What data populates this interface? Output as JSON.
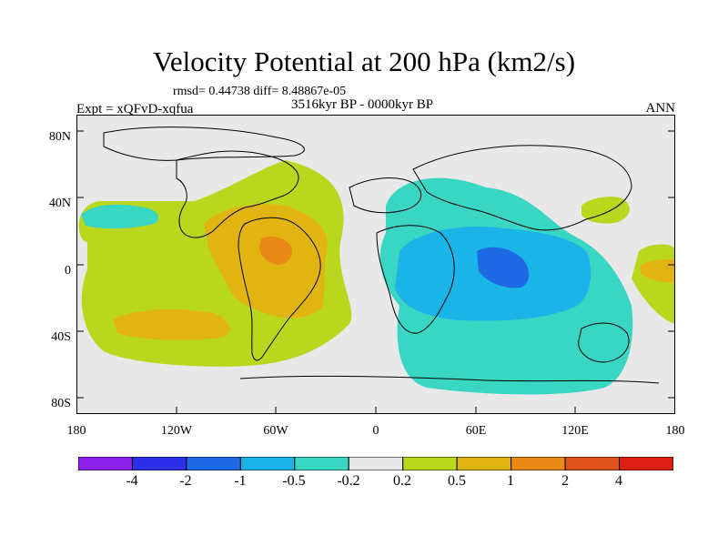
{
  "header": {
    "title": "Velocity Potential at 200 hPa (km2/s)",
    "stats": "rmsd= 0.44738 diff= 8.48867e-05",
    "experiment": "Expt = xQFvD-xqfua",
    "period": "3516kyr BP - 0000kyr BP",
    "season": "ANN"
  },
  "axes": {
    "lat_labels": [
      "80N",
      "40N",
      "0",
      "40S",
      "80S"
    ],
    "lon_labels": [
      "180",
      "120W",
      "60W",
      "0",
      "60E",
      "120E",
      "180"
    ]
  },
  "colorbar": {
    "labels": [
      "-4",
      "-2",
      "-1",
      "-0.5",
      "-0.2",
      "0.2",
      "0.5",
      "1",
      "2",
      "4"
    ],
    "colors": [
      "#8b1ee8",
      "#2d2ee8",
      "#1e6ae6",
      "#1ab4e8",
      "#3ad6c4",
      "#e8e8e8",
      "#b9d71c",
      "#e2b412",
      "#e98a16",
      "#e0521c",
      "#dc2014"
    ]
  },
  "map_colors": {
    "ocean_background": "#e8e8e8",
    "coast": "#000000"
  }
}
